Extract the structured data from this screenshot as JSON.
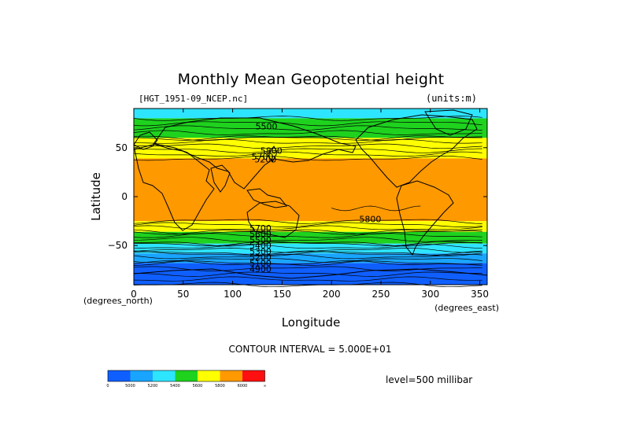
{
  "chart_data": {
    "type": "heatmap",
    "title": "Monthly Mean Geopotential height",
    "subtitle": "[HGT_1951-09_NCEP.nc]",
    "units_label": "(units:m)",
    "xlabel": "Longitude",
    "ylabel": "Latitude",
    "x_units_label": "(degrees_east)",
    "y_units_label": "(degrees_north)",
    "xlim": [
      0,
      357.5
    ],
    "ylim": [
      -90,
      90
    ],
    "xticks": [
      0,
      50,
      100,
      150,
      200,
      250,
      300,
      350
    ],
    "xtick_labels": [
      "0",
      "50",
      "100",
      "150",
      "200",
      "250",
      "300",
      "350"
    ],
    "yticks": [
      50,
      0,
      -50
    ],
    "ytick_labels": [
      "50",
      "0",
      "−50"
    ],
    "contour_interval_label": "CONTOUR INTERVAL = 5.000E+01",
    "level_label": "level=500 millibar",
    "contour_labels": [
      {
        "text": "5500",
        "lon": 123,
        "lat": 72
      },
      {
        "text": "5800",
        "lon": 128,
        "lat": 47
      },
      {
        "text": "5700",
        "lon": 119,
        "lat": 41
      },
      {
        "text": "5200",
        "lon": 122,
        "lat": 38
      },
      {
        "text": "5800",
        "lon": 228,
        "lat": -23
      },
      {
        "text": "5700",
        "lon": 117,
        "lat": -32
      },
      {
        "text": "5600",
        "lon": 117,
        "lat": -38
      },
      {
        "text": "5500",
        "lon": 117,
        "lat": -44
      },
      {
        "text": "5400",
        "lon": 117,
        "lat": -50
      },
      {
        "text": "5300",
        "lon": 117,
        "lat": -56
      },
      {
        "text": "5200",
        "lon": 117,
        "lat": -62
      },
      {
        "text": "5100",
        "lon": 117,
        "lat": -68
      },
      {
        "text": "4900",
        "lon": 117,
        "lat": -74
      }
    ],
    "bands": [
      {
        "lat_top": 90,
        "lat_bottom": 80,
        "color": "#2ee5ff",
        "label": "5200-5400"
      },
      {
        "lat_top": 80,
        "lat_bottom": 60,
        "color": "#1ed21e",
        "label": "5400-5600"
      },
      {
        "lat_top": 60,
        "lat_bottom": 39,
        "color": "#ffff00",
        "label": "5600-5800"
      },
      {
        "lat_top": 39,
        "lat_bottom": -25,
        "color": "#ff9900",
        "label": "5800-6000"
      },
      {
        "lat_top": -25,
        "lat_bottom": -36,
        "color": "#ffff00",
        "label": "5600-5800"
      },
      {
        "lat_top": -36,
        "lat_bottom": -48,
        "color": "#1ed21e",
        "label": "5400-5600"
      },
      {
        "lat_top": -48,
        "lat_bottom": -58,
        "color": "#2ee5ff",
        "label": "5200-5400"
      },
      {
        "lat_top": -58,
        "lat_bottom": -68,
        "color": "#19a5ff",
        "label": "5000-5200"
      },
      {
        "lat_top": -68,
        "lat_bottom": -90,
        "color": "#0f5fff",
        "label": "<5000"
      }
    ],
    "colorbar": {
      "colors": [
        "#0f5fff",
        "#19a5ff",
        "#2ee5ff",
        "#1ed21e",
        "#ffff00",
        "#ff9900",
        "#ff1010"
      ],
      "tick_labels": [
        "0",
        "5000",
        "5200",
        "5400",
        "5600",
        "5800",
        "6000",
        "∞"
      ]
    }
  }
}
